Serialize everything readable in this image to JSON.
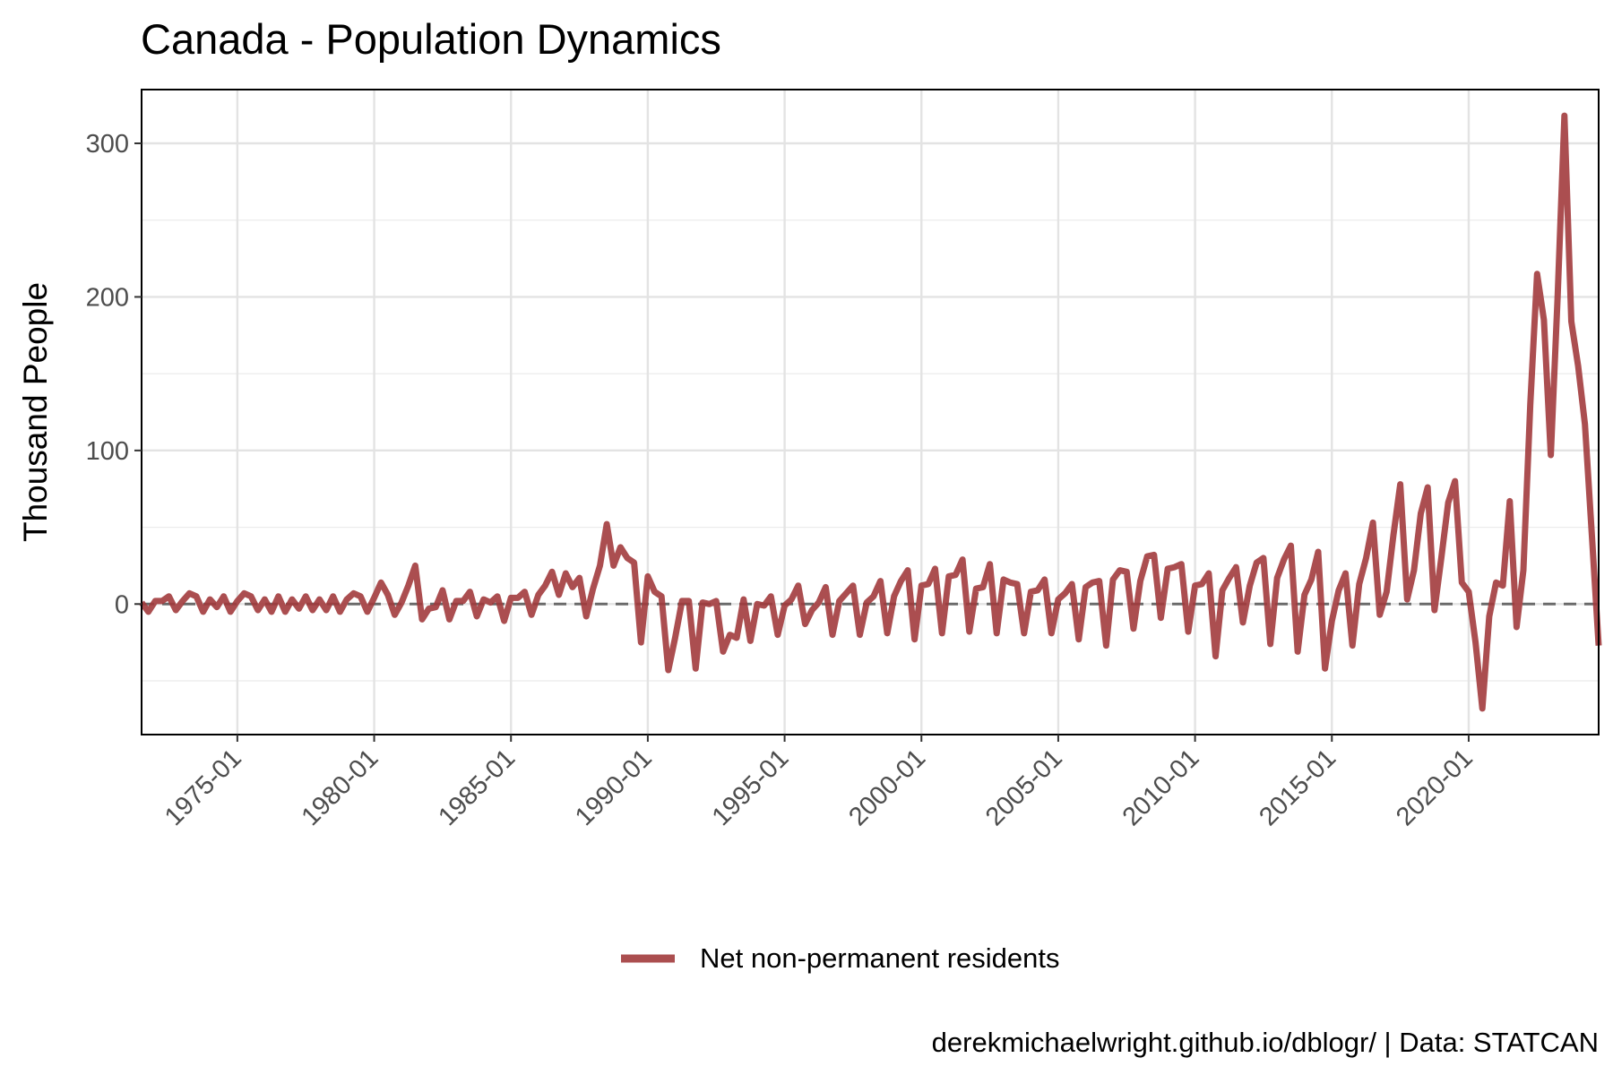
{
  "chart_data": {
    "type": "line",
    "title": "Canada - Population Dynamics",
    "xlabel": "",
    "ylabel": "Thousand People",
    "x_tick_labels": [
      "1975-01",
      "1980-01",
      "1985-01",
      "1990-01",
      "1995-01",
      "2000-01",
      "2005-01",
      "2010-01",
      "2015-01",
      "2020-01"
    ],
    "y_ticks": [
      0,
      100,
      200,
      300
    ],
    "ylim": [
      -85,
      335
    ],
    "xlim": [
      "1971-07",
      "2024-10"
    ],
    "grid": true,
    "reference_line": {
      "y": 0,
      "style": "dashed"
    },
    "legend_position": "bottom",
    "caption": "derekmichaelwright.github.io/dblogr/ | Data: STATCAN",
    "series": [
      {
        "name": "Net non-permanent residents",
        "color": "#a23b3d",
        "points": [
          [
            "1971-07",
            1
          ],
          [
            "1971-10",
            -5
          ],
          [
            "1972-01",
            2
          ],
          [
            "1972-04",
            2
          ],
          [
            "1972-07",
            5
          ],
          [
            "1972-10",
            -4
          ],
          [
            "1973-01",
            2
          ],
          [
            "1973-04",
            7
          ],
          [
            "1973-07",
            5
          ],
          [
            "1973-10",
            -5
          ],
          [
            "1974-01",
            3
          ],
          [
            "1974-04",
            -2
          ],
          [
            "1974-07",
            5
          ],
          [
            "1974-10",
            -5
          ],
          [
            "1975-01",
            2
          ],
          [
            "1975-04",
            7
          ],
          [
            "1975-07",
            5
          ],
          [
            "1975-10",
            -4
          ],
          [
            "1976-01",
            3
          ],
          [
            "1976-04",
            -5
          ],
          [
            "1976-07",
            5
          ],
          [
            "1976-10",
            -5
          ],
          [
            "1977-01",
            3
          ],
          [
            "1977-04",
            -3
          ],
          [
            "1977-07",
            5
          ],
          [
            "1977-10",
            -4
          ],
          [
            "1978-01",
            3
          ],
          [
            "1978-04",
            -4
          ],
          [
            "1978-07",
            5
          ],
          [
            "1978-10",
            -5
          ],
          [
            "1979-01",
            3
          ],
          [
            "1979-04",
            7
          ],
          [
            "1979-07",
            5
          ],
          [
            "1979-10",
            -5
          ],
          [
            "1980-01",
            4
          ],
          [
            "1980-04",
            14
          ],
          [
            "1980-07",
            6
          ],
          [
            "1980-10",
            -7
          ],
          [
            "1981-01",
            1
          ],
          [
            "1981-04",
            12
          ],
          [
            "1981-07",
            25
          ],
          [
            "1981-10",
            -10
          ],
          [
            "1982-01",
            -3
          ],
          [
            "1982-04",
            -2
          ],
          [
            "1982-07",
            9
          ],
          [
            "1982-10",
            -10
          ],
          [
            "1983-01",
            2
          ],
          [
            "1983-04",
            2
          ],
          [
            "1983-07",
            8
          ],
          [
            "1983-10",
            -8
          ],
          [
            "1984-01",
            3
          ],
          [
            "1984-04",
            1
          ],
          [
            "1984-07",
            5
          ],
          [
            "1984-10",
            -11
          ],
          [
            "1985-01",
            4
          ],
          [
            "1985-04",
            4
          ],
          [
            "1985-07",
            8
          ],
          [
            "1985-10",
            -7
          ],
          [
            "1986-01",
            6
          ],
          [
            "1986-04",
            12
          ],
          [
            "1986-07",
            21
          ],
          [
            "1986-10",
            6
          ],
          [
            "1987-01",
            20
          ],
          [
            "1987-04",
            11
          ],
          [
            "1987-07",
            17
          ],
          [
            "1987-10",
            -8
          ],
          [
            "1988-01",
            10
          ],
          [
            "1988-04",
            25
          ],
          [
            "1988-07",
            52
          ],
          [
            "1988-10",
            25
          ],
          [
            "1989-01",
            37
          ],
          [
            "1989-04",
            30
          ],
          [
            "1989-07",
            27
          ],
          [
            "1989-10",
            -25
          ],
          [
            "1990-01",
            18
          ],
          [
            "1990-04",
            8
          ],
          [
            "1990-07",
            5
          ],
          [
            "1990-10",
            -43
          ],
          [
            "1991-01",
            -22
          ],
          [
            "1991-04",
            2
          ],
          [
            "1991-07",
            2
          ],
          [
            "1991-10",
            -42
          ],
          [
            "1992-01",
            1
          ],
          [
            "1992-04",
            0
          ],
          [
            "1992-07",
            2
          ],
          [
            "1992-10",
            -31
          ],
          [
            "1993-01",
            -20
          ],
          [
            "1993-04",
            -22
          ],
          [
            "1993-07",
            3
          ],
          [
            "1993-10",
            -24
          ],
          [
            "1994-01",
            0
          ],
          [
            "1994-04",
            -1
          ],
          [
            "1994-07",
            5
          ],
          [
            "1994-10",
            -20
          ],
          [
            "1995-01",
            -1
          ],
          [
            "1995-04",
            3
          ],
          [
            "1995-07",
            12
          ],
          [
            "1995-10",
            -13
          ],
          [
            "1996-01",
            -4
          ],
          [
            "1996-04",
            1
          ],
          [
            "1996-07",
            11
          ],
          [
            "1996-10",
            -20
          ],
          [
            "1997-01",
            2
          ],
          [
            "1997-04",
            7
          ],
          [
            "1997-07",
            12
          ],
          [
            "1997-10",
            -20
          ],
          [
            "1998-01",
            1
          ],
          [
            "1998-04",
            5
          ],
          [
            "1998-07",
            15
          ],
          [
            "1998-10",
            -19
          ],
          [
            "1999-01",
            5
          ],
          [
            "1999-04",
            15
          ],
          [
            "1999-07",
            22
          ],
          [
            "1999-10",
            -23
          ],
          [
            "2000-01",
            12
          ],
          [
            "2000-04",
            13
          ],
          [
            "2000-07",
            23
          ],
          [
            "2000-10",
            -19
          ],
          [
            "2001-01",
            18
          ],
          [
            "2001-04",
            19
          ],
          [
            "2001-07",
            29
          ],
          [
            "2001-10",
            -18
          ],
          [
            "2002-01",
            10
          ],
          [
            "2002-04",
            11
          ],
          [
            "2002-07",
            26
          ],
          [
            "2002-10",
            -19
          ],
          [
            "2003-01",
            16
          ],
          [
            "2003-04",
            14
          ],
          [
            "2003-07",
            13
          ],
          [
            "2003-10",
            -19
          ],
          [
            "2004-01",
            8
          ],
          [
            "2004-04",
            9
          ],
          [
            "2004-07",
            16
          ],
          [
            "2004-10",
            -19
          ],
          [
            "2005-01",
            3
          ],
          [
            "2005-04",
            7
          ],
          [
            "2005-07",
            13
          ],
          [
            "2005-10",
            -23
          ],
          [
            "2006-01",
            11
          ],
          [
            "2006-04",
            14
          ],
          [
            "2006-07",
            15
          ],
          [
            "2006-10",
            -27
          ],
          [
            "2007-01",
            16
          ],
          [
            "2007-04",
            22
          ],
          [
            "2007-07",
            21
          ],
          [
            "2007-10",
            -16
          ],
          [
            "2008-01",
            15
          ],
          [
            "2008-04",
            31
          ],
          [
            "2008-07",
            32
          ],
          [
            "2008-10",
            -9
          ],
          [
            "2009-01",
            23
          ],
          [
            "2009-04",
            24
          ],
          [
            "2009-07",
            26
          ],
          [
            "2009-10",
            -18
          ],
          [
            "2010-01",
            12
          ],
          [
            "2010-04",
            13
          ],
          [
            "2010-07",
            20
          ],
          [
            "2010-10",
            -34
          ],
          [
            "2011-01",
            9
          ],
          [
            "2011-04",
            17
          ],
          [
            "2011-07",
            24
          ],
          [
            "2011-10",
            -12
          ],
          [
            "2012-01",
            12
          ],
          [
            "2012-04",
            27
          ],
          [
            "2012-07",
            30
          ],
          [
            "2012-10",
            -26
          ],
          [
            "2013-01",
            17
          ],
          [
            "2013-04",
            29
          ],
          [
            "2013-07",
            38
          ],
          [
            "2013-10",
            -31
          ],
          [
            "2014-01",
            6
          ],
          [
            "2014-04",
            16
          ],
          [
            "2014-07",
            34
          ],
          [
            "2014-10",
            -42
          ],
          [
            "2015-01",
            -11
          ],
          [
            "2015-04",
            9
          ],
          [
            "2015-07",
            20
          ],
          [
            "2015-10",
            -27
          ],
          [
            "2016-01",
            13
          ],
          [
            "2016-04",
            30
          ],
          [
            "2016-07",
            53
          ],
          [
            "2016-10",
            -7
          ],
          [
            "2017-01",
            8
          ],
          [
            "2017-04",
            45
          ],
          [
            "2017-07",
            78
          ],
          [
            "2017-10",
            3
          ],
          [
            "2018-01",
            22
          ],
          [
            "2018-04",
            59
          ],
          [
            "2018-07",
            76
          ],
          [
            "2018-10",
            -4
          ],
          [
            "2019-01",
            30
          ],
          [
            "2019-04",
            66
          ],
          [
            "2019-07",
            80
          ],
          [
            "2019-10",
            14
          ],
          [
            "2020-01",
            8
          ],
          [
            "2020-04",
            -25
          ],
          [
            "2020-07",
            -68
          ],
          [
            "2020-10",
            -8
          ],
          [
            "2021-01",
            14
          ],
          [
            "2021-04",
            12
          ],
          [
            "2021-07",
            67
          ],
          [
            "2021-10",
            -15
          ],
          [
            "2022-01",
            22
          ],
          [
            "2022-04",
            130
          ],
          [
            "2022-07",
            215
          ],
          [
            "2022-10",
            185
          ],
          [
            "2023-01",
            97
          ],
          [
            "2023-04",
            200
          ],
          [
            "2023-07",
            318
          ],
          [
            "2023-10",
            184
          ],
          [
            "2024-01",
            155
          ],
          [
            "2024-04",
            117
          ],
          [
            "2024-07",
            45
          ],
          [
            "2024-10",
            -27
          ]
        ]
      }
    ]
  }
}
